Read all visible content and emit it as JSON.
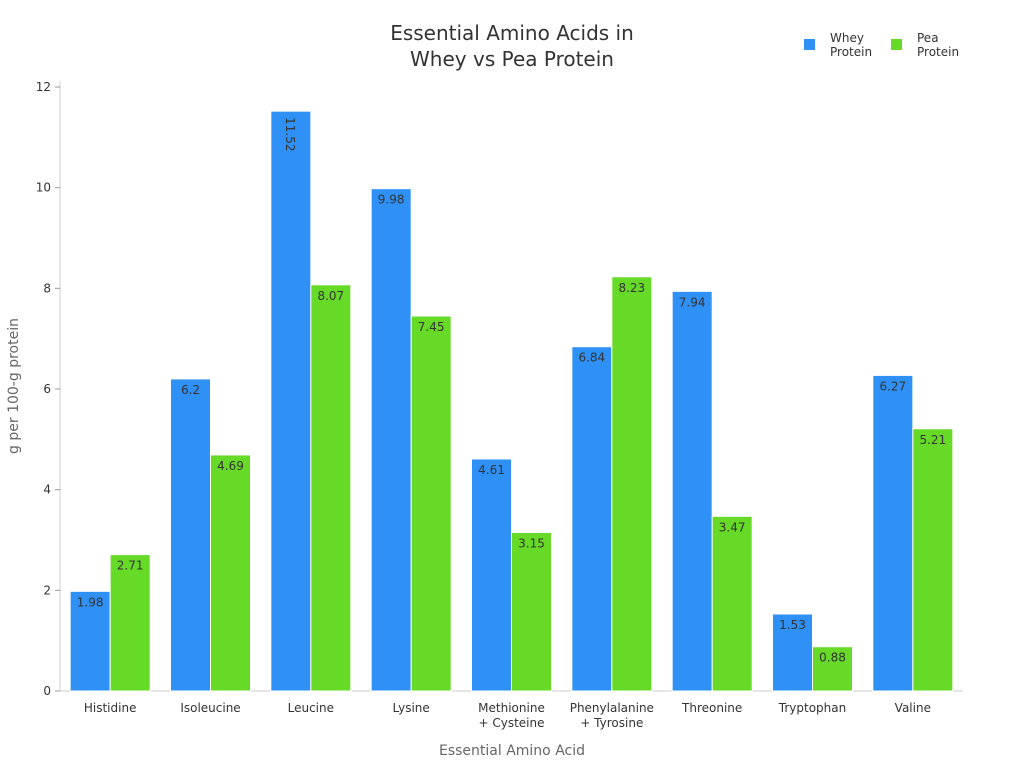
{
  "chart_data": {
    "type": "bar",
    "title": [
      "Essential Amino Acids in",
      "Whey vs Pea Protein"
    ],
    "xlabel": "Essential Amino Acid",
    "ylabel": "g per 100-g protein",
    "ylim": [
      0,
      12
    ],
    "yticks": [
      0,
      2,
      4,
      6,
      8,
      10,
      12
    ],
    "grid": false,
    "legend_position": "top-right",
    "categories": [
      [
        "Histidine"
      ],
      [
        "Isoleucine"
      ],
      [
        "Leucine"
      ],
      [
        "Lysine"
      ],
      [
        "Methionine",
        "+ Cysteine"
      ],
      [
        "Phenylalanine",
        "+ Tyrosine"
      ],
      [
        "Threonine"
      ],
      [
        "Tryptophan"
      ],
      [
        "Valine"
      ]
    ],
    "series": [
      {
        "name": "Whey Protein",
        "legend_lines": [
          "Whey",
          "Protein"
        ],
        "color": "#2f90f6",
        "values": [
          1.98,
          6.2,
          11.52,
          9.98,
          4.61,
          6.84,
          7.94,
          1.53,
          6.27
        ]
      },
      {
        "name": "Pea Protein",
        "legend_lines": [
          "Pea",
          "Protein"
        ],
        "color": "#66da27",
        "values": [
          2.71,
          4.69,
          8.07,
          7.45,
          3.15,
          8.23,
          3.47,
          0.88,
          5.21
        ]
      }
    ]
  }
}
